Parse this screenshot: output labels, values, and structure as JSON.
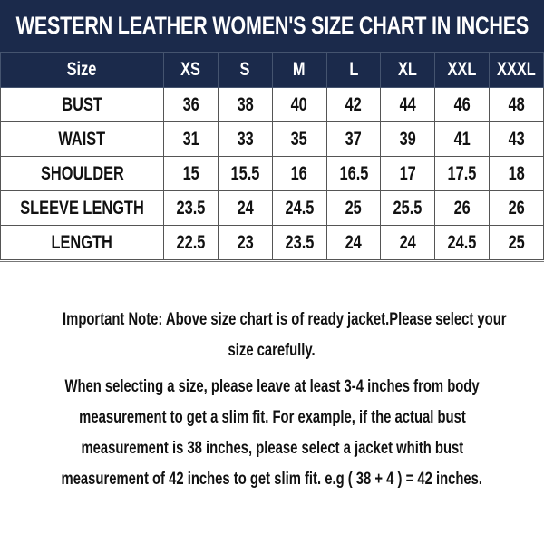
{
  "title": "WESTERN LEATHER WOMEN'S SIZE CHART IN INCHES",
  "table": {
    "header": [
      "Size",
      "XS",
      "S",
      "M",
      "L",
      "XL",
      "XXL",
      "XXXL"
    ],
    "rows": [
      [
        "BUST",
        "36",
        "38",
        "40",
        "42",
        "44",
        "46",
        "48"
      ],
      [
        "WAIST",
        "31",
        "33",
        "35",
        "37",
        "39",
        "41",
        "43"
      ],
      [
        "SHOULDER",
        "15",
        "15.5",
        "16",
        "16.5",
        "17",
        "17.5",
        "18"
      ],
      [
        "SLEEVE LENGTH",
        "23.5",
        "24",
        "24.5",
        "25",
        "25.5",
        "26",
        "26"
      ],
      [
        "LENGTH",
        "22.5",
        "23",
        "23.5",
        "24",
        "24",
        "24.5",
        "25"
      ]
    ]
  },
  "notes": [
    "Important Note: Above size chart is of ready jacket.Please select your",
    "size carefully.",
    "When selecting a size, please leave at least 3-4 inches from body",
    "measurement to get a slim fit. For example, if the actual bust",
    "measurement is 38 inches, please select a jacket whith bust",
    "measurement of 42 inches to get slim fit. e.g ( 38 + 4 ) = 42 inches."
  ],
  "colors": {
    "header_bg": "#1b2a4b",
    "text": "#111111"
  }
}
